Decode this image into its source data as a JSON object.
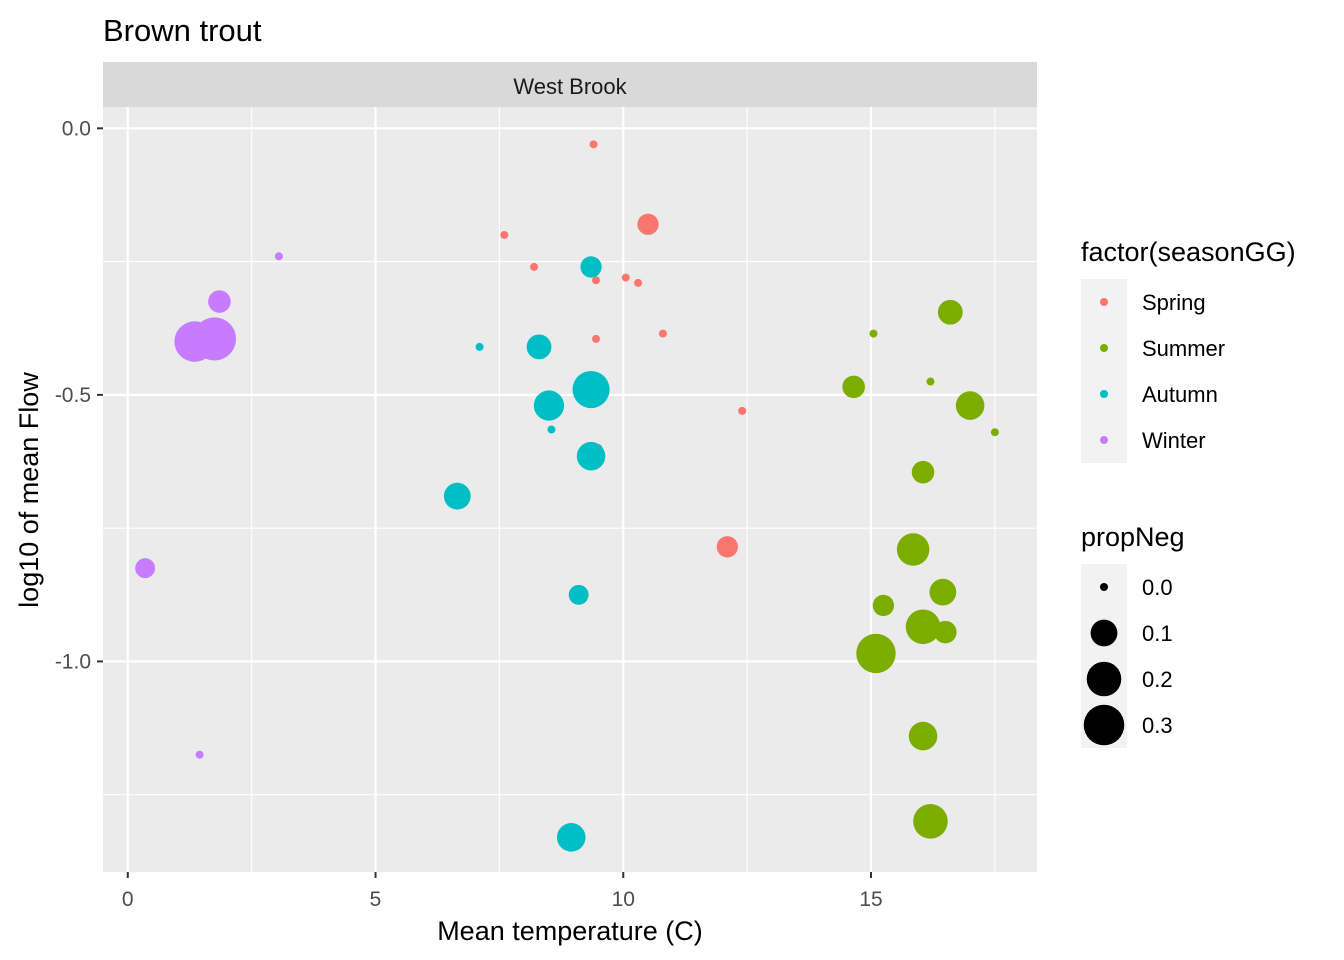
{
  "chart_data": {
    "type": "scatter",
    "title": "Brown trout",
    "facet_label": "West Brook",
    "xlabel": "Mean temperature (C)",
    "ylabel": "log10 of mean Flow",
    "xlim": [
      -0.5,
      18.35
    ],
    "ylim": [
      -1.395,
      0.04
    ],
    "x_ticks": [
      0,
      5,
      10,
      15
    ],
    "x_tick_labels": [
      "0",
      "5",
      "10",
      "15"
    ],
    "y_ticks": [
      0,
      -0.5,
      -1
    ],
    "y_tick_labels": [
      "0.0",
      "-0.5",
      "-1.0"
    ],
    "grid": true,
    "legend_position": "right",
    "color_legend": {
      "title": "factor(seasonGG)",
      "entries": [
        "Spring",
        "Summer",
        "Autumn",
        "Winter"
      ],
      "colors": [
        "#F8766D",
        "#7CAE00",
        "#00BFC4",
        "#C77CFF"
      ]
    },
    "size_legend": {
      "title": "propNeg",
      "values": [
        0.0,
        0.1,
        0.2,
        0.3
      ],
      "labels": [
        "0.0",
        "0.1",
        "0.2",
        "0.3"
      ]
    },
    "series": [
      {
        "name": "Spring",
        "points": [
          {
            "x": 9.4,
            "y": -0.03,
            "size": 0.0
          },
          {
            "x": 7.6,
            "y": -0.2,
            "size": 0.0
          },
          {
            "x": 10.5,
            "y": -0.18,
            "size": 0.05
          },
          {
            "x": 8.2,
            "y": -0.26,
            "size": 0.0
          },
          {
            "x": 10.05,
            "y": -0.28,
            "size": 0.0
          },
          {
            "x": 9.45,
            "y": -0.285,
            "size": 0.0
          },
          {
            "x": 10.3,
            "y": -0.29,
            "size": 0.0
          },
          {
            "x": 10.8,
            "y": -0.385,
            "size": 0.0
          },
          {
            "x": 9.45,
            "y": -0.395,
            "size": 0.0
          },
          {
            "x": 12.4,
            "y": -0.53,
            "size": 0.0
          },
          {
            "x": 9.5,
            "y": -0.6,
            "size": 0.0
          },
          {
            "x": 12.1,
            "y": -0.785,
            "size": 0.05
          }
        ]
      },
      {
        "name": "Summer",
        "points": [
          {
            "x": 16.6,
            "y": -0.345,
            "size": 0.08
          },
          {
            "x": 15.05,
            "y": -0.385,
            "size": 0.0
          },
          {
            "x": 14.65,
            "y": -0.485,
            "size": 0.06
          },
          {
            "x": 16.2,
            "y": -0.475,
            "size": 0.0
          },
          {
            "x": 17.0,
            "y": -0.52,
            "size": 0.12
          },
          {
            "x": 17.5,
            "y": -0.57,
            "size": 0.0
          },
          {
            "x": 16.05,
            "y": -0.645,
            "size": 0.06
          },
          {
            "x": 15.85,
            "y": -0.79,
            "size": 0.17
          },
          {
            "x": 16.45,
            "y": -0.87,
            "size": 0.1
          },
          {
            "x": 15.25,
            "y": -0.895,
            "size": 0.05
          },
          {
            "x": 16.05,
            "y": -0.935,
            "size": 0.2
          },
          {
            "x": 16.5,
            "y": -0.945,
            "size": 0.06
          },
          {
            "x": 15.1,
            "y": -0.985,
            "size": 0.28
          },
          {
            "x": 16.05,
            "y": -1.14,
            "size": 0.12
          },
          {
            "x": 16.2,
            "y": -1.3,
            "size": 0.2
          }
        ]
      },
      {
        "name": "Autumn",
        "points": [
          {
            "x": 9.35,
            "y": -0.26,
            "size": 0.05
          },
          {
            "x": 7.1,
            "y": -0.41,
            "size": 0.0
          },
          {
            "x": 8.3,
            "y": -0.41,
            "size": 0.08
          },
          {
            "x": 9.35,
            "y": -0.49,
            "size": 0.24
          },
          {
            "x": 8.5,
            "y": -0.52,
            "size": 0.14
          },
          {
            "x": 8.55,
            "y": -0.565,
            "size": 0.0
          },
          {
            "x": 9.35,
            "y": -0.615,
            "size": 0.12
          },
          {
            "x": 6.65,
            "y": -0.69,
            "size": 0.1
          },
          {
            "x": 9.1,
            "y": -0.875,
            "size": 0.04
          },
          {
            "x": 8.95,
            "y": -1.33,
            "size": 0.12
          }
        ]
      },
      {
        "name": "Winter",
        "points": [
          {
            "x": 3.05,
            "y": -0.24,
            "size": 0.0
          },
          {
            "x": 1.85,
            "y": -0.325,
            "size": 0.06
          },
          {
            "x": 1.35,
            "y": -0.4,
            "size": 0.3
          },
          {
            "x": 1.75,
            "y": -0.395,
            "size": 0.35
          },
          {
            "x": 0.35,
            "y": -0.825,
            "size": 0.04
          },
          {
            "x": 1.45,
            "y": -1.175,
            "size": 0.0
          }
        ]
      }
    ]
  }
}
